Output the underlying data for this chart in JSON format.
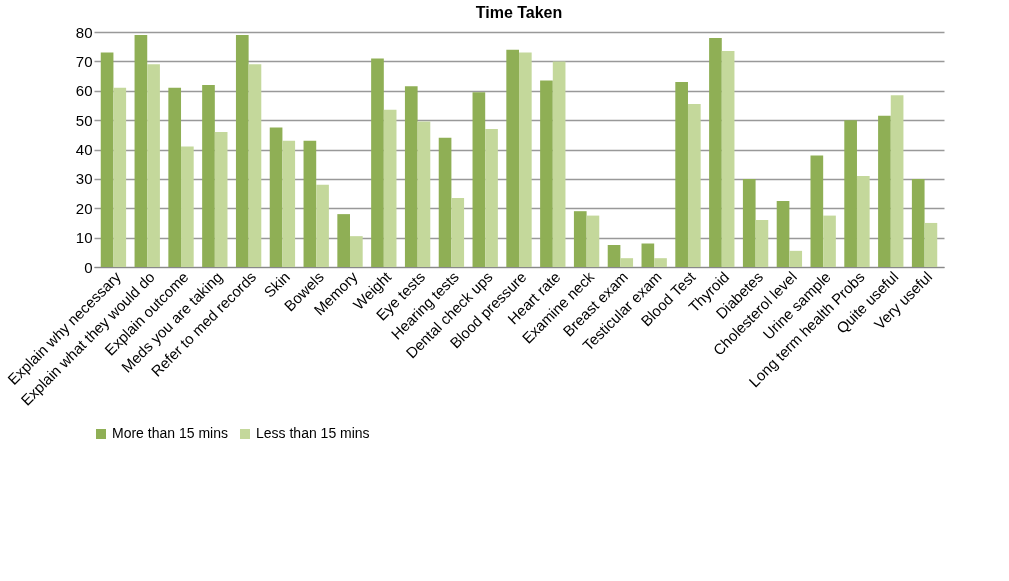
{
  "chart_data": {
    "type": "bar",
    "title": "Time Taken",
    "categories": [
      "Explain why necessary",
      "Explain what they would do",
      "Explain outcome",
      "Meds you are taking",
      "Refer to med records",
      "Skin",
      "Bowels",
      "Memory",
      "Weight",
      "Eye tests",
      "Hearing tests",
      "Dental check ups",
      "Blood pressure",
      "Heart rate",
      "Examine neck",
      "Breast exam",
      "Testicular exam",
      "Blood Test",
      "Thyroid",
      "Diabetes",
      "Cholesterol level",
      "Urine sample",
      "Long term health Probs",
      "Quite useful",
      "Very useful"
    ],
    "series": [
      {
        "name": "More than 15 mins",
        "color": "#8faf55",
        "values": [
          73,
          79,
          61,
          62,
          79,
          47.5,
          43,
          18,
          71,
          61.5,
          44,
          59.5,
          74,
          63.5,
          19,
          7.5,
          8,
          63,
          78,
          30,
          22.5,
          38,
          50,
          51.5,
          30
        ]
      },
      {
        "name": "Less than 15 mins",
        "color": "#c4d89b",
        "values": [
          61,
          69,
          41,
          46,
          69,
          43,
          28,
          10.5,
          53.5,
          49.5,
          23.5,
          47,
          73,
          70,
          17.5,
          3,
          3,
          55.5,
          73.5,
          16,
          5.5,
          17.5,
          31,
          58.5,
          15
        ]
      }
    ],
    "ylim": [
      0,
      80
    ],
    "yticks": [
      0,
      10,
      20,
      30,
      40,
      50,
      60,
      70,
      80
    ],
    "grid": "y",
    "legend": "bottom"
  }
}
